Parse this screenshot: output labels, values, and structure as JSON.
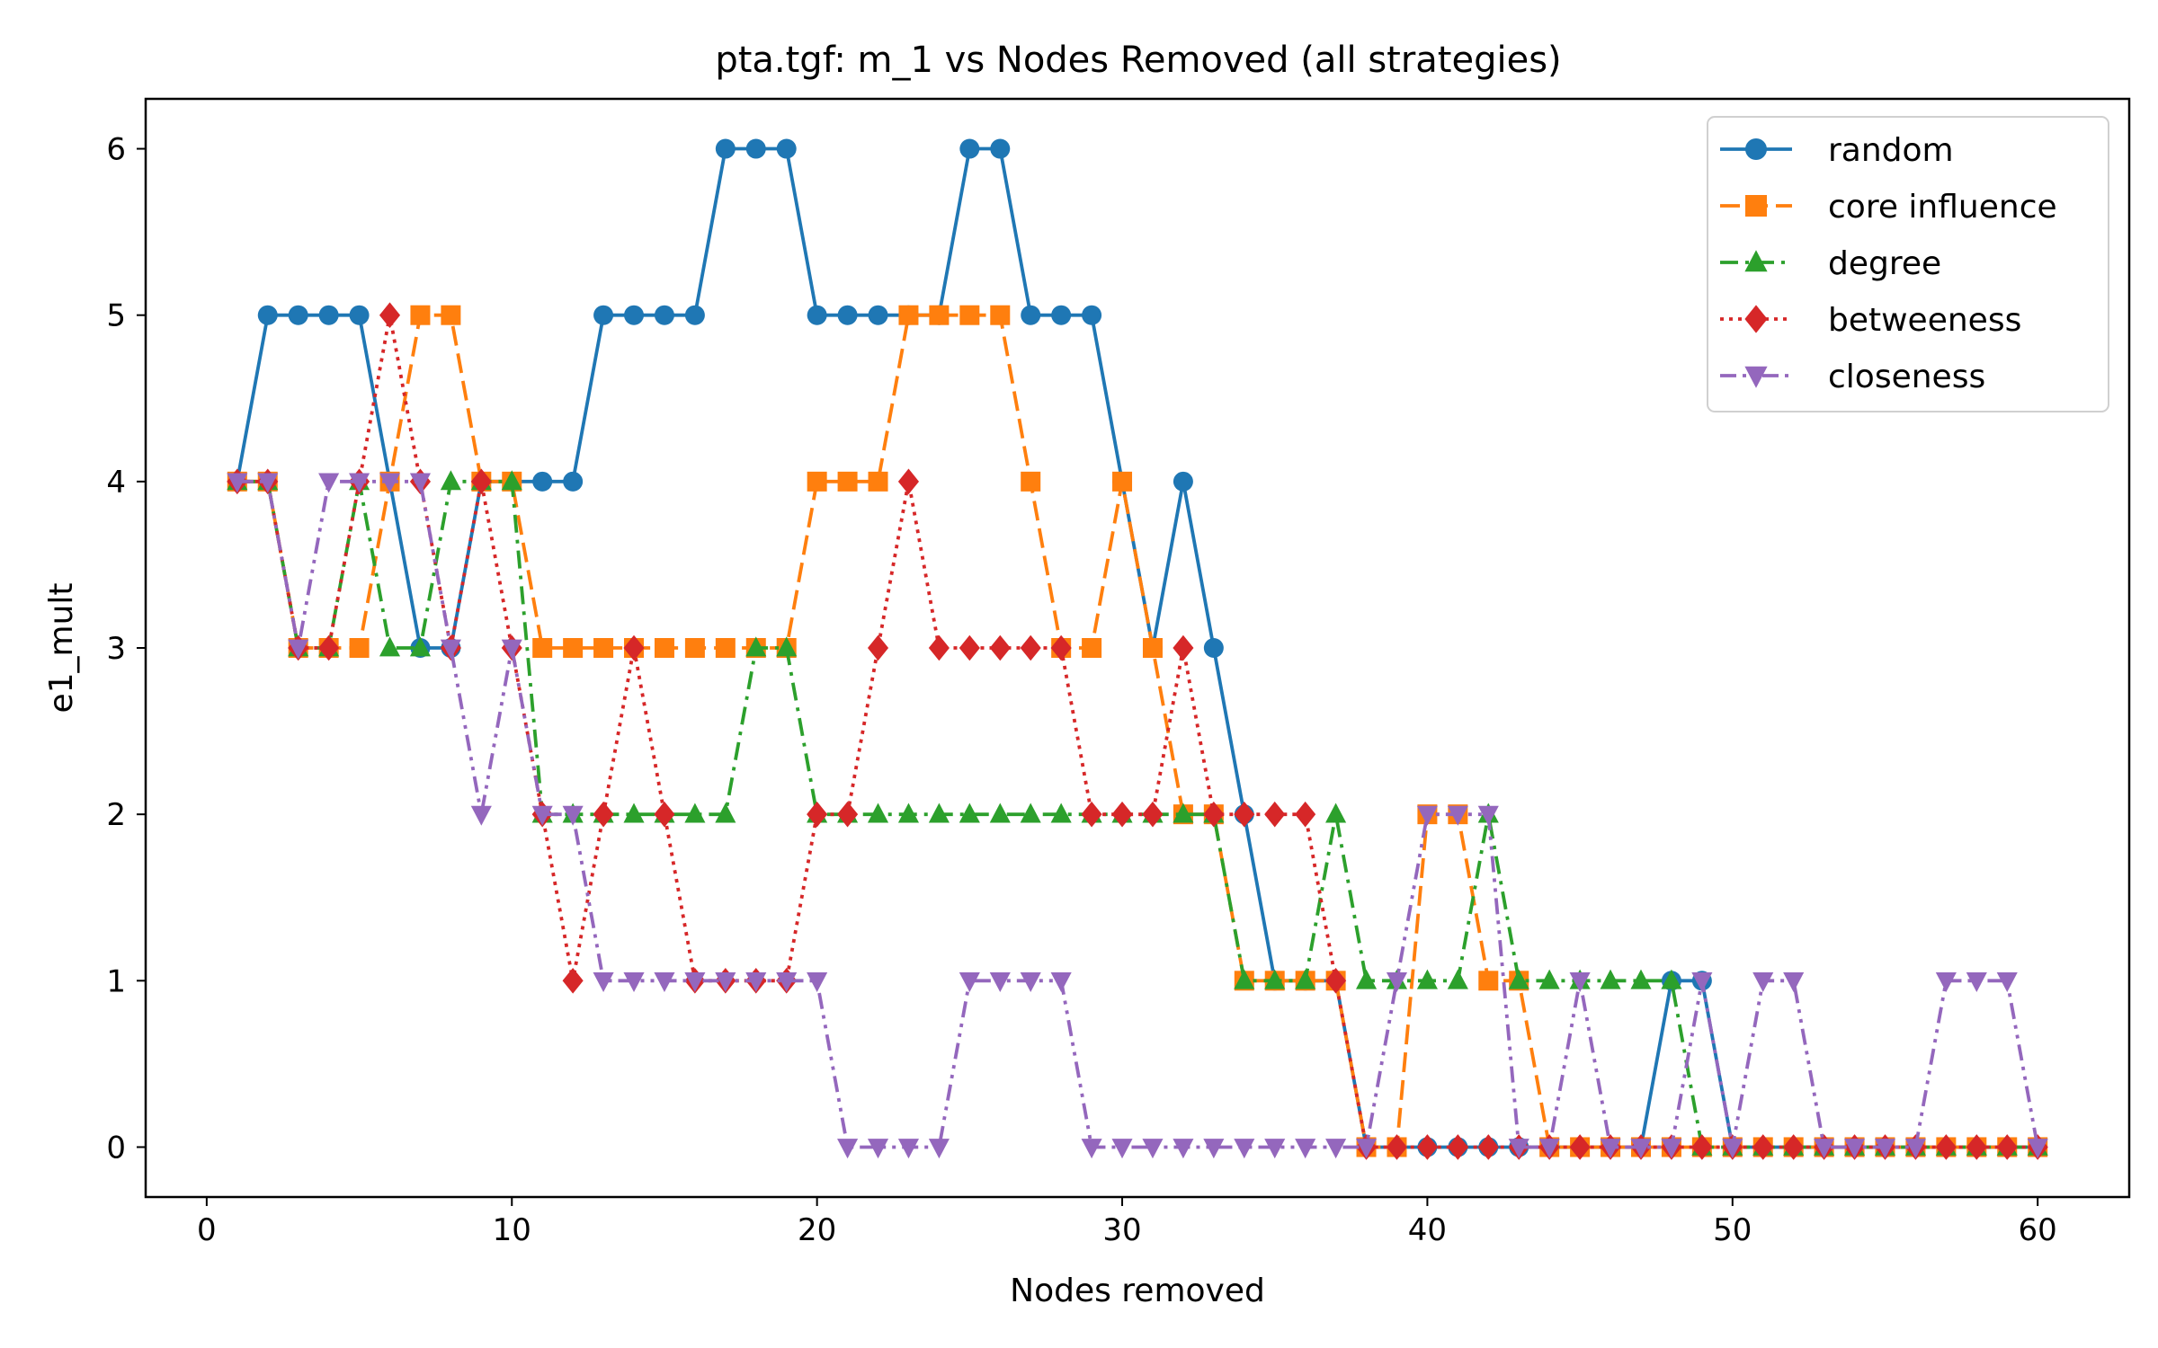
{
  "chart_data": {
    "type": "line",
    "title": "pta.tgf: m_1 vs Nodes Removed (all strategies)",
    "xlabel": "Nodes removed",
    "ylabel": "e1_mult",
    "xlim": [
      -2,
      63
    ],
    "ylim": [
      -0.3,
      6.3
    ],
    "xticks": [
      0,
      10,
      20,
      30,
      40,
      50,
      60
    ],
    "yticks": [
      0,
      1,
      2,
      3,
      4,
      5,
      6
    ],
    "grid": false,
    "legend_position": "top-right",
    "x": [
      1,
      2,
      3,
      4,
      5,
      6,
      7,
      8,
      9,
      10,
      11,
      12,
      13,
      14,
      15,
      16,
      17,
      18,
      19,
      20,
      21,
      22,
      23,
      24,
      25,
      26,
      27,
      28,
      29,
      30,
      31,
      32,
      33,
      34,
      35,
      36,
      37,
      38,
      39,
      40,
      41,
      42,
      43,
      44,
      45,
      46,
      47,
      48,
      49,
      50,
      51,
      52,
      53,
      54,
      55,
      56,
      57,
      58,
      59,
      60
    ],
    "series": [
      {
        "name": "random",
        "color": "#1f77b4",
        "marker": "circle",
        "dash": "solid",
        "values": [
          4,
          5,
          5,
          5,
          5,
          4,
          3,
          3,
          4,
          4,
          4,
          4,
          5,
          5,
          5,
          5,
          6,
          6,
          6,
          5,
          5,
          5,
          5,
          5,
          6,
          6,
          5,
          5,
          5,
          4,
          3,
          4,
          3,
          2,
          1,
          1,
          1,
          0,
          0,
          0,
          0,
          0,
          0,
          0,
          0,
          0,
          0,
          1,
          1,
          0,
          0,
          0,
          0,
          0,
          0,
          0,
          0,
          0,
          0,
          0
        ]
      },
      {
        "name": "core influence",
        "color": "#ff7f0e",
        "marker": "square",
        "dash": "dashed",
        "values": [
          4,
          4,
          3,
          3,
          3,
          4,
          5,
          5,
          4,
          4,
          3,
          3,
          3,
          3,
          3,
          3,
          3,
          3,
          3,
          4,
          4,
          4,
          5,
          5,
          5,
          5,
          4,
          3,
          3,
          4,
          3,
          2,
          2,
          1,
          1,
          1,
          1,
          0,
          0,
          2,
          2,
          1,
          1,
          0,
          0,
          0,
          0,
          0,
          0,
          0,
          0,
          0,
          0,
          0,
          0,
          0,
          0,
          0,
          0,
          0
        ]
      },
      {
        "name": "degree",
        "color": "#2ca02c",
        "marker": "triangle-up",
        "dash": "dashdot",
        "values": [
          4,
          4,
          3,
          3,
          4,
          3,
          3,
          4,
          4,
          4,
          2,
          2,
          2,
          2,
          2,
          2,
          2,
          3,
          3,
          2,
          2,
          2,
          2,
          2,
          2,
          2,
          2,
          2,
          2,
          2,
          2,
          2,
          2,
          1,
          1,
          1,
          2,
          1,
          1,
          1,
          1,
          2,
          1,
          1,
          1,
          1,
          1,
          1,
          0,
          0,
          0,
          0,
          0,
          0,
          0,
          0,
          0,
          0,
          0,
          0
        ]
      },
      {
        "name": "betweeness",
        "color": "#d62728",
        "marker": "diamond",
        "dash": "dotted",
        "values": [
          4,
          4,
          3,
          3,
          4,
          5,
          4,
          3,
          4,
          3,
          2,
          1,
          2,
          3,
          2,
          1,
          1,
          1,
          1,
          2,
          2,
          3,
          4,
          3,
          3,
          3,
          3,
          3,
          2,
          2,
          2,
          3,
          2,
          2,
          2,
          2,
          1,
          0,
          0,
          0,
          0,
          0,
          0,
          0,
          0,
          0,
          0,
          0,
          0,
          0,
          0,
          0,
          0,
          0,
          0,
          0,
          0,
          0,
          0,
          0
        ]
      },
      {
        "name": "closeness",
        "color": "#9467bd",
        "marker": "triangle-down",
        "dash": "dashdotdot",
        "values": [
          4,
          4,
          3,
          4,
          4,
          4,
          4,
          3,
          2,
          3,
          2,
          2,
          1,
          1,
          1,
          1,
          1,
          1,
          1,
          1,
          0,
          0,
          0,
          0,
          1,
          1,
          1,
          1,
          0,
          0,
          0,
          0,
          0,
          0,
          0,
          0,
          0,
          0,
          1,
          2,
          2,
          2,
          0,
          0,
          1,
          0,
          0,
          0,
          1,
          0,
          1,
          1,
          0,
          0,
          0,
          0,
          1,
          1,
          1,
          0
        ]
      }
    ]
  }
}
